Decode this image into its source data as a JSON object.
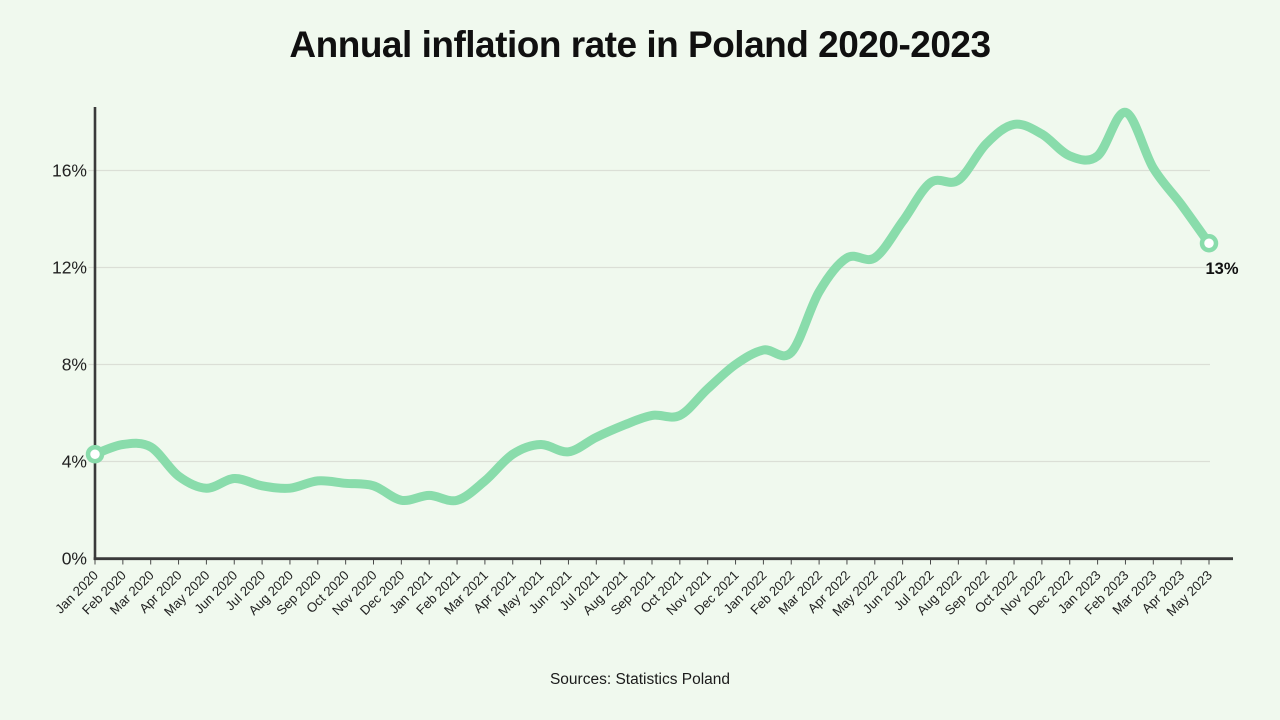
{
  "title": "Annual inflation rate in Poland 2020-2023",
  "source": "Sources: Statistics Poland",
  "end_label": "13%",
  "colors": {
    "background": "#F0F9EE",
    "line": "#89DCAB",
    "axis": "#3A3A3A",
    "tick": "#4A4A4A",
    "grid": "#DBDFD6",
    "label_text": "#222222",
    "marker_fill": "#FFFFFF"
  },
  "chart_data": {
    "type": "line",
    "title": "Annual inflation rate in Poland 2020-2023",
    "unit": "%",
    "x": [
      "Jan 2020",
      "Feb 2020",
      "Mar 2020",
      "Apr 2020",
      "May 2020",
      "Jun 2020",
      "Jul 2020",
      "Aug 2020",
      "Sep 2020",
      "Oct 2020",
      "Nov 2020",
      "Dec 2020",
      "Jan 2021",
      "Feb 2021",
      "Mar 2021",
      "Apr 2021",
      "May 2021",
      "Jun 2021",
      "Jul 2021",
      "Aug 2021",
      "Sep 2021",
      "Oct 2021",
      "Nov 2021",
      "Dec 2021",
      "Jan 2022",
      "Feb 2022",
      "Mar 2022",
      "Apr 2022",
      "May 2022",
      "Jun 2022",
      "Jul 2022",
      "Aug 2022",
      "Sep 2022",
      "Oct 2022",
      "Nov 2022",
      "Dec 2022",
      "Jan 2023",
      "Feb 2023",
      "Mar 2023",
      "Apr 2023",
      "May 2023"
    ],
    "values": [
      4.3,
      4.7,
      4.6,
      3.4,
      2.9,
      3.3,
      3.0,
      2.9,
      3.2,
      3.1,
      3.0,
      2.4,
      2.6,
      2.4,
      3.2,
      4.3,
      4.7,
      4.4,
      5.0,
      5.5,
      5.9,
      5.9,
      7.0,
      8.0,
      8.6,
      8.5,
      11.0,
      12.4,
      12.4,
      13.9,
      15.5,
      15.6,
      17.1,
      17.9,
      17.5,
      16.6,
      16.6,
      18.4,
      16.1,
      14.6,
      13.0
    ],
    "ylim": [
      0,
      18.6
    ],
    "yticks": [
      0,
      4,
      8,
      12,
      16
    ],
    "ytick_labels": [
      "0%",
      "4%",
      "8%",
      "12%",
      "16%"
    ],
    "grid": "horizontal",
    "legend": "none",
    "markers": "open circles on first and last points",
    "end_annotation": "13%",
    "smoothing": "rounded spline"
  }
}
